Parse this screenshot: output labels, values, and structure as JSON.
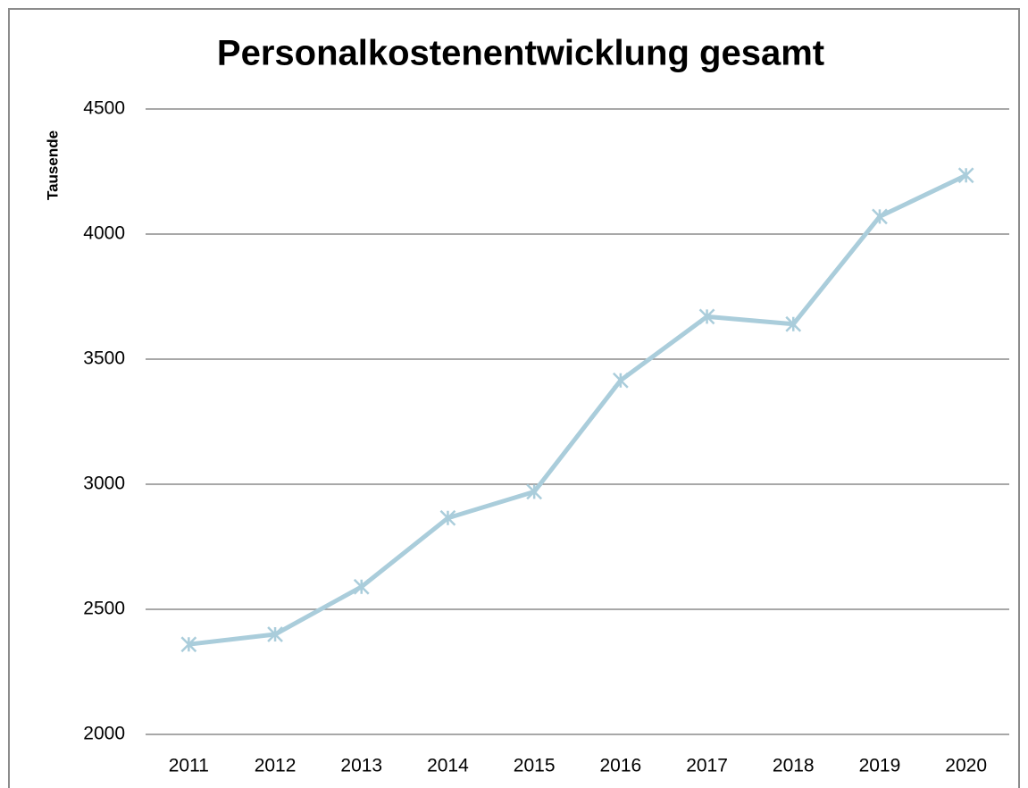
{
  "chart_data": {
    "type": "line",
    "title": "Personalkostenentwicklung gesamt",
    "y_label": "Tausende",
    "categories": [
      "2011",
      "2012",
      "2013",
      "2014",
      "2015",
      "2016",
      "2017",
      "2018",
      "2019",
      "2020"
    ],
    "series": [
      {
        "name": "Personalkosten",
        "color": "#aacddb",
        "values": [
          2360,
          2400,
          2590,
          2865,
          2970,
          3415,
          3670,
          3640,
          4070,
          4235
        ]
      }
    ],
    "ylim": [
      2000,
      4500
    ],
    "yticks": [
      2000,
      2500,
      3000,
      3500,
      4000,
      4500
    ],
    "grid": true
  }
}
